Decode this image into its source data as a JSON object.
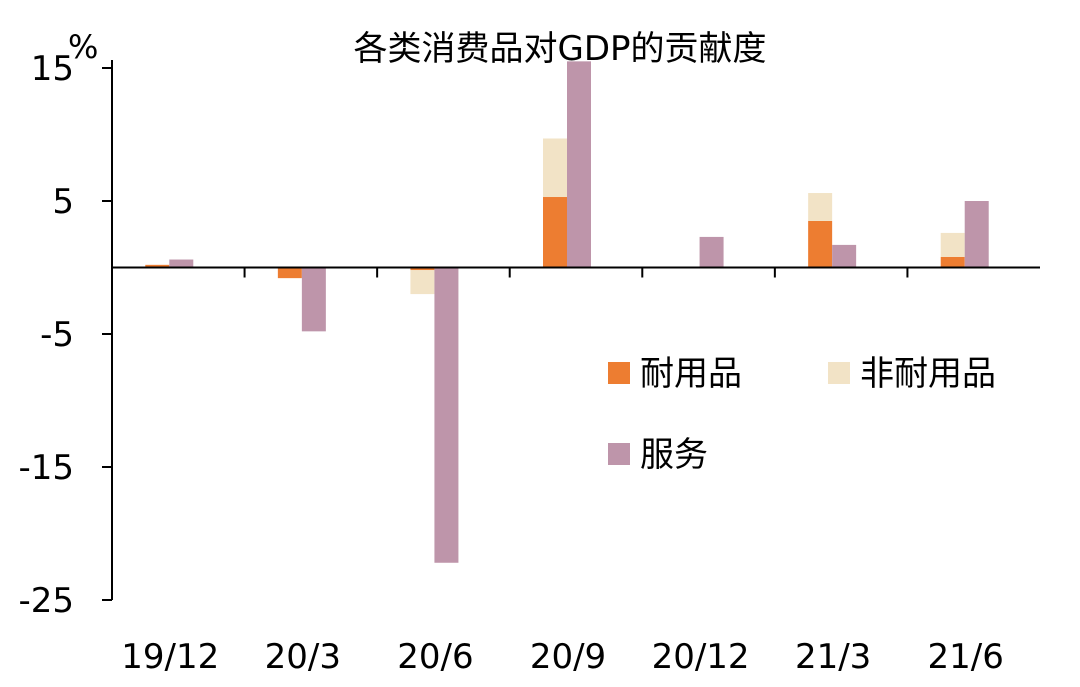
{
  "chart_data": {
    "type": "bar",
    "title": "各类消费品对GDP的贡献度",
    "unit_label": "%",
    "categories": [
      "19/12",
      "20/3",
      "20/6",
      "20/9",
      "20/12",
      "21/3",
      "21/6"
    ],
    "stacked_series": [
      {
        "name": "耐用品",
        "color": "#ED7D31",
        "values": [
          0.2,
          -0.8,
          -0.2,
          5.3,
          0.0,
          3.5,
          0.8
        ]
      },
      {
        "name": "非耐用品",
        "color": "#F2E3C6",
        "values": [
          0.0,
          0.0,
          -1.8,
          4.4,
          0.0,
          2.1,
          1.8
        ]
      }
    ],
    "side_series": [
      {
        "name": "服务",
        "color": "#BE95AA",
        "values": [
          0.6,
          -4.8,
          -22.2,
          15.5,
          2.3,
          1.7,
          5.0
        ]
      }
    ],
    "ylim": [
      -25,
      15
    ],
    "yticks": [
      15,
      5,
      -5,
      -15,
      -25
    ],
    "legend": {
      "placement": "center-right"
    },
    "grid": false
  }
}
